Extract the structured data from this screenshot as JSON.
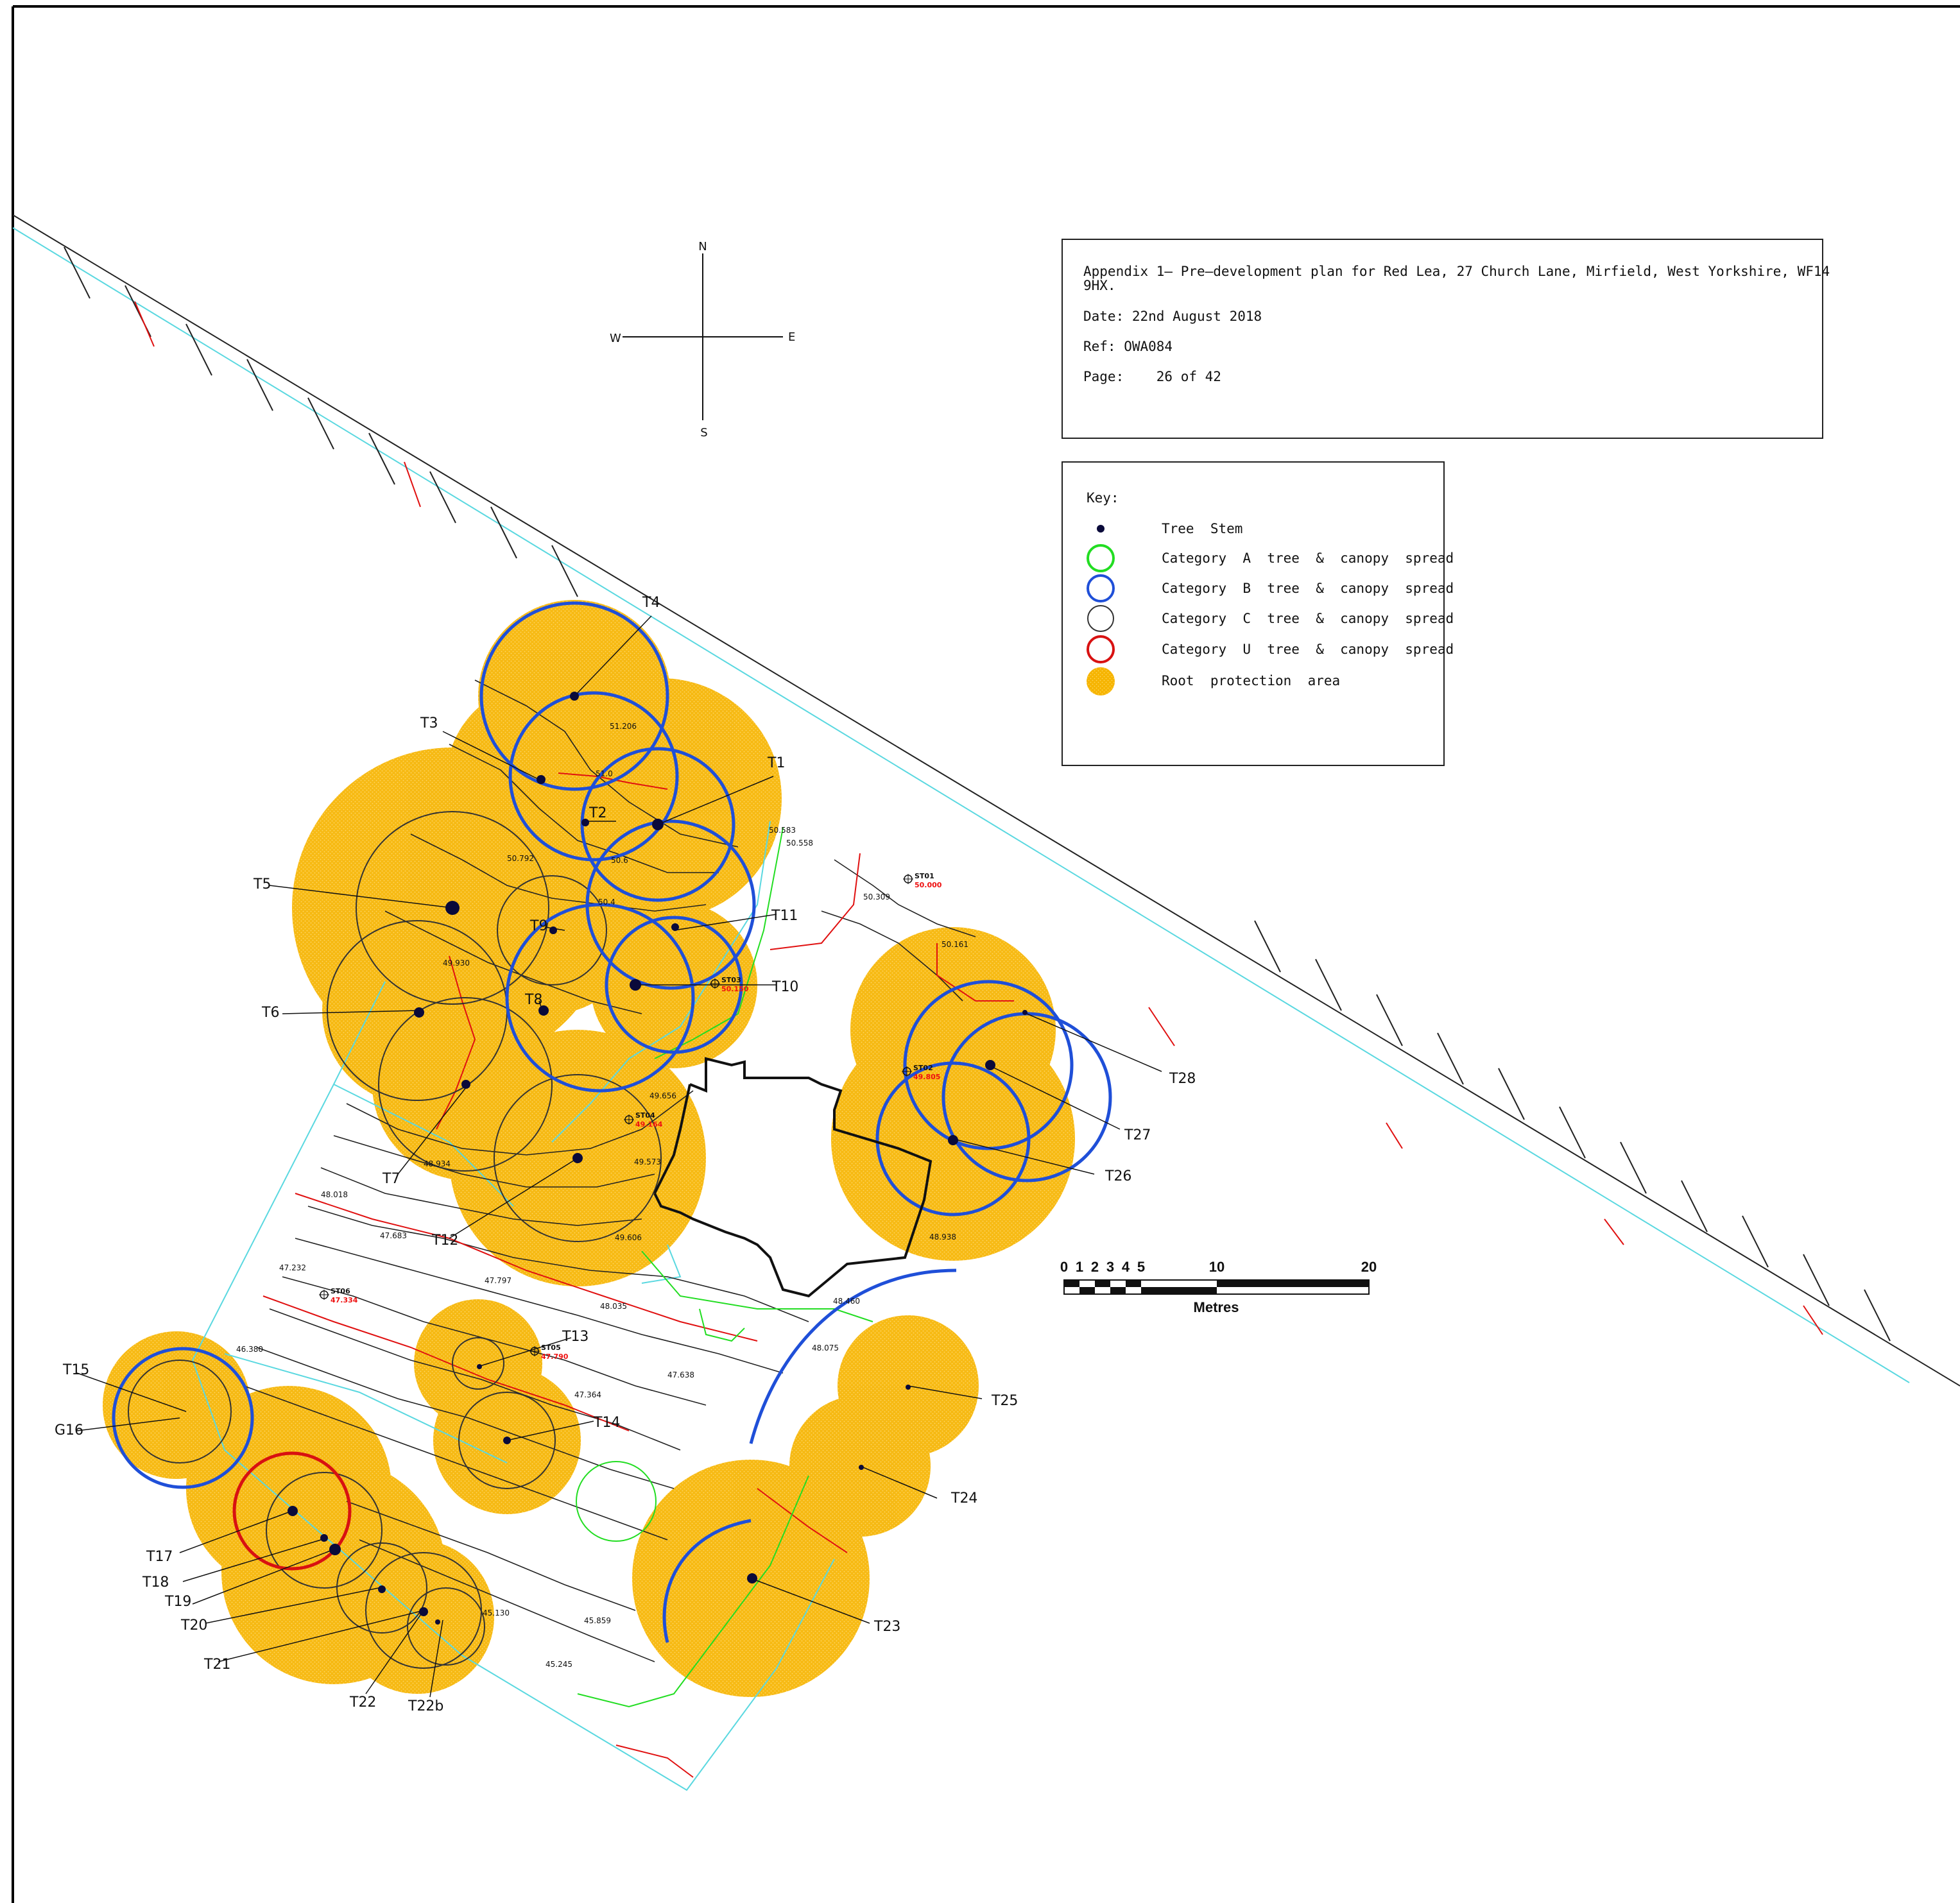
{
  "info_box": {
    "title_line1": "Appendix 1— Pre—development plan for Red Lea, 27 Church Lane, Mirfield, West Yorkshire, WF14",
    "title_line2": "9HX.",
    "date": "Date: 22nd August 2018",
    "ref": "Ref: OWA084",
    "page": "Page:    26 of 42"
  },
  "compass": {
    "north": "N",
    "south": "S",
    "east": "E",
    "west": "W"
  },
  "key": {
    "title": "Key:",
    "items": [
      {
        "label": "Tree  Stem",
        "symbol": "tree-stem",
        "color": "#0a0a3a"
      },
      {
        "label": "Category  A  tree  &  canopy  spread",
        "symbol": "circle",
        "color": "#22dd22"
      },
      {
        "label": "Category  B  tree  &  canopy  spread",
        "symbol": "circle",
        "color": "#1f4fd8"
      },
      {
        "label": "Category  C  tree  &  canopy  spread",
        "symbol": "circle",
        "color": "#333333"
      },
      {
        "label": "Category  U  tree  &  canopy  spread",
        "symbol": "circle",
        "color": "#d81111"
      },
      {
        "label": "Root  protection  area",
        "symbol": "filled-circle",
        "color": "#f4b200"
      }
    ]
  },
  "scale_bar": {
    "ticks": [
      "0",
      "1",
      "2",
      "3",
      "4",
      "5",
      "10",
      "20"
    ],
    "unit": "Metres"
  },
  "colors": {
    "rpa_fill": "#f6b400",
    "rpa_fill_light": "#f8c640",
    "cat_a": "#22dd22",
    "cat_b": "#1f4fd8",
    "cat_c": "#333333",
    "cat_u": "#d81111",
    "boundary": "#5ad8e0",
    "contour_red": "#e01010",
    "stem": "#0a0a3a"
  },
  "tree_labels": [
    "T1",
    "T2",
    "T3",
    "T4",
    "T5",
    "T6",
    "T7",
    "T8",
    "T9",
    "T10",
    "T11",
    "T12",
    "T13",
    "T14",
    "T15",
    "G16",
    "T17",
    "T18",
    "T19",
    "T20",
    "T21",
    "T22",
    "T22b",
    "T23",
    "T24",
    "T25",
    "T26",
    "T27",
    "T28"
  ],
  "spot_levels": [
    "51.206",
    "51.0",
    "50.6",
    "50.4",
    "50.792",
    "49.930",
    "50.583",
    "50.558",
    "50.309",
    "50.161",
    "49.656",
    "49.573",
    "49.606",
    "48.934",
    "48.018",
    "47.683",
    "47.232",
    "47.797",
    "48.035",
    "48.460",
    "48.075",
    "47.638",
    "47.364",
    "46.380",
    "45.859",
    "45.245",
    "45.130",
    "48.938"
  ],
  "survey_stations": [
    {
      "name": "ST01",
      "level": "50.000"
    },
    {
      "name": "ST02",
      "level": "49.805"
    },
    {
      "name": "ST03",
      "level": "50.150"
    },
    {
      "name": "ST04",
      "level": "49.164"
    },
    {
      "name": "ST05",
      "level": "47.790"
    },
    {
      "name": "ST06",
      "level": "47.334"
    }
  ]
}
